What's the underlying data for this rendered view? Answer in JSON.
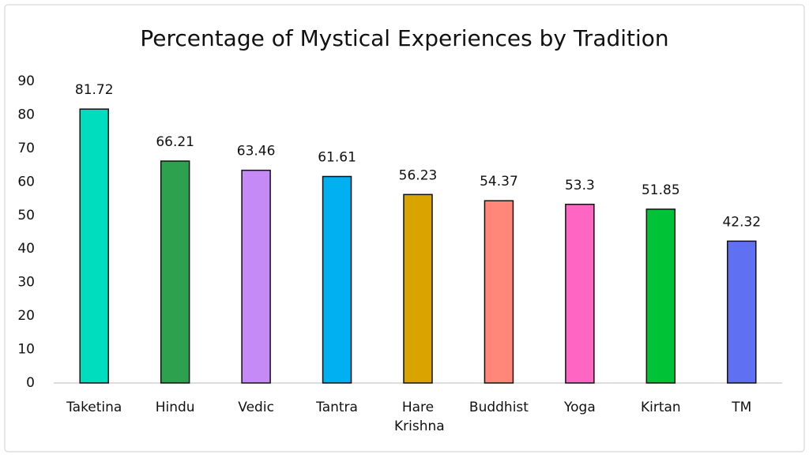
{
  "chart_data": {
    "type": "bar",
    "title": "Percentage of Mystical Experiences by Tradition",
    "categories": [
      "Taketina",
      "Hindu",
      "Vedic",
      "Tantra",
      "Hare Krishna",
      "Buddhist",
      "Yoga",
      "Kirtan",
      "TM"
    ],
    "values": [
      81.72,
      66.21,
      63.46,
      61.61,
      56.23,
      54.37,
      53.3,
      51.85,
      42.32
    ],
    "colors": [
      "#00dcbe",
      "#2ea14e",
      "#c68af7",
      "#00b0f0",
      "#d9a300",
      "#ff877a",
      "#ff66c4",
      "#00c236",
      "#6070f2"
    ],
    "ylim": [
      0,
      90
    ],
    "yticks": [
      0,
      10,
      20,
      30,
      40,
      50,
      60,
      70,
      80,
      90
    ],
    "grid": false
  }
}
